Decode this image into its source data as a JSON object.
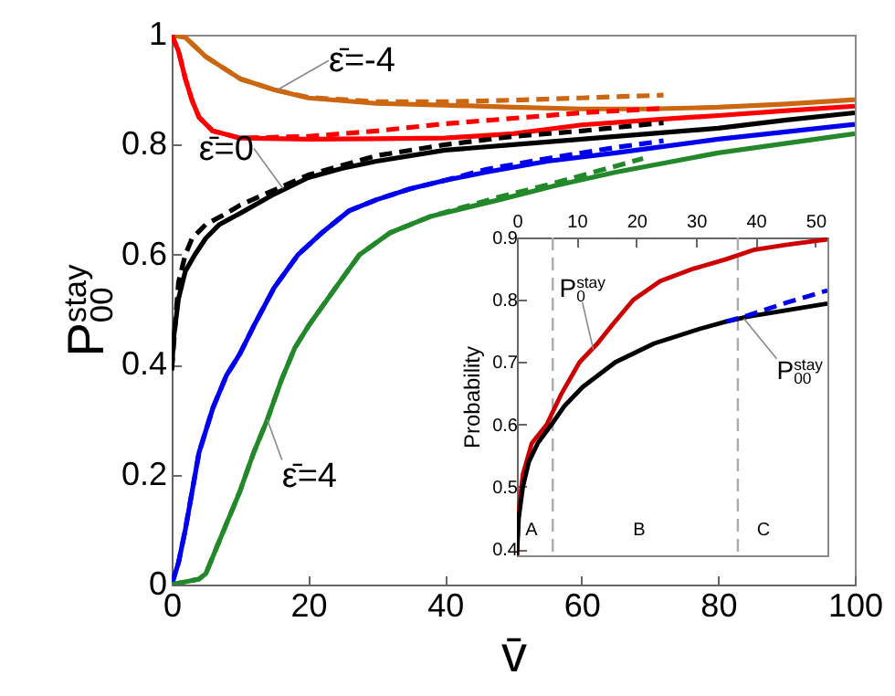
{
  "chart_data": [
    {
      "type": "line",
      "xlabel": "v̄",
      "ylabel": "P$_{00}$$^{stay}$",
      "xlim": [
        0,
        100
      ],
      "xticks": [
        0,
        20,
        40,
        60,
        80,
        100
      ],
      "ylim": [
        0,
        1
      ],
      "yticks": [
        0,
        0.2,
        0.4,
        0.6,
        0.8,
        1
      ],
      "series": [
        {
          "color": "#cc6611",
          "x": [
            0,
            2,
            5,
            10,
            15,
            20,
            30,
            40,
            50,
            60,
            70,
            80,
            90,
            100
          ],
          "values": [
            1,
            0.995,
            0.96,
            0.92,
            0.9,
            0.885,
            0.875,
            0.872,
            0.868,
            0.865,
            0.865,
            0.868,
            0.874,
            0.882
          ]
        },
        {
          "color": "#cc6611",
          "line_style": "dashed",
          "x": [
            0,
            2,
            5,
            10,
            15,
            20,
            30,
            40,
            50,
            60,
            72
          ],
          "values": [
            1,
            0.995,
            0.96,
            0.92,
            0.9,
            0.886,
            0.878,
            0.878,
            0.881,
            0.885,
            0.89
          ]
        },
        {
          "color": "#ff0000",
          "x": [
            0,
            1,
            2,
            3,
            4,
            6,
            10,
            20,
            30,
            40,
            50,
            60,
            70,
            80,
            90,
            100
          ],
          "values": [
            1,
            0.97,
            0.92,
            0.88,
            0.85,
            0.825,
            0.812,
            0.81,
            0.811,
            0.812,
            0.82,
            0.836,
            0.845,
            0.853,
            0.862,
            0.87
          ]
        },
        {
          "color": "#ff0000",
          "line_style": "dashed",
          "x": [
            0,
            1,
            2,
            3,
            4,
            6,
            10,
            20,
            30,
            40,
            50,
            60,
            72
          ],
          "values": [
            1,
            0.97,
            0.92,
            0.88,
            0.85,
            0.825,
            0.812,
            0.815,
            0.825,
            0.838,
            0.848,
            0.858,
            0.866
          ]
        },
        {
          "color": "#000000",
          "x": [
            0,
            0.3,
            1,
            2,
            3.4,
            5,
            7,
            10,
            15,
            20,
            25,
            30,
            40,
            50,
            60,
            70,
            80,
            90,
            100
          ],
          "values": [
            0.39,
            0.45,
            0.52,
            0.57,
            0.6,
            0.63,
            0.655,
            0.675,
            0.71,
            0.74,
            0.757,
            0.77,
            0.79,
            0.8,
            0.81,
            0.82,
            0.83,
            0.845,
            0.858
          ]
        },
        {
          "color": "#000000",
          "line_style": "dashed",
          "x": [
            0,
            1,
            2,
            3,
            5,
            8,
            10,
            20,
            30,
            40,
            50,
            60,
            72
          ],
          "values": [
            0.39,
            0.55,
            0.6,
            0.63,
            0.655,
            0.675,
            0.69,
            0.745,
            0.78,
            0.8,
            0.815,
            0.825,
            0.84
          ]
        },
        {
          "color": "#0000ee",
          "x": [
            0,
            1,
            2,
            3,
            4,
            6,
            8,
            10,
            12,
            15,
            18.5,
            22,
            26,
            30,
            35,
            40,
            46,
            55,
            65,
            80,
            100
          ],
          "values": [
            0,
            0.04,
            0.1,
            0.17,
            0.24,
            0.32,
            0.38,
            0.42,
            0.47,
            0.54,
            0.6,
            0.64,
            0.68,
            0.7,
            0.72,
            0.735,
            0.75,
            0.77,
            0.785,
            0.81,
            0.837
          ]
        },
        {
          "color": "#0000ee",
          "line_style": "dashed",
          "x": [
            0,
            1,
            2,
            3,
            4,
            6,
            8,
            10,
            12,
            15,
            18.5,
            22,
            26,
            30,
            35,
            40,
            46,
            55,
            65,
            72
          ],
          "values": [
            0,
            0.04,
            0.1,
            0.17,
            0.24,
            0.32,
            0.38,
            0.42,
            0.47,
            0.54,
            0.6,
            0.64,
            0.68,
            0.7,
            0.72,
            0.735,
            0.755,
            0.775,
            0.795,
            0.807
          ]
        },
        {
          "color": "#22882a",
          "x": [
            0,
            2,
            4,
            5,
            7,
            10,
            12,
            14,
            16,
            18,
            20,
            24,
            27.5,
            32,
            38,
            48,
            56,
            65,
            80,
            100
          ],
          "values": [
            0,
            0.005,
            0.01,
            0.02,
            0.08,
            0.17,
            0.24,
            0.3,
            0.37,
            0.43,
            0.47,
            0.54,
            0.6,
            0.64,
            0.67,
            0.7,
            0.725,
            0.75,
            0.785,
            0.82
          ]
        },
        {
          "color": "#22882a",
          "line_style": "dashed",
          "x": [
            0,
            2,
            4,
            5,
            7,
            10,
            12,
            14,
            16,
            18,
            20,
            24,
            27.5,
            32,
            38,
            48,
            56,
            69
          ],
          "values": [
            0,
            0.005,
            0.01,
            0.02,
            0.08,
            0.17,
            0.24,
            0.3,
            0.37,
            0.43,
            0.47,
            0.54,
            0.6,
            0.64,
            0.67,
            0.705,
            0.73,
            0.775
          ]
        }
      ],
      "annotations": [
        {
          "text": "ε̄=-4",
          "x": 15.5,
          "y": 0.9
        },
        {
          "text": "ε̄=0",
          "x": 16.3,
          "y": 0.72
        },
        {
          "text": "ε̄=4",
          "x": 14,
          "y": 0.3
        }
      ]
    },
    {
      "type": "line",
      "ylabel": "Probability",
      "xlim": [
        0,
        52
      ],
      "xticks": [
        0,
        10,
        20,
        30,
        40,
        50
      ],
      "ylim": [
        0.39,
        0.9
      ],
      "yticks": [
        0.4,
        0.5,
        0.6,
        0.7,
        0.8,
        0.9
      ],
      "series": [
        {
          "color": "#cc0000",
          "x": [
            0,
            0.3,
            1,
            2.5,
            5,
            7.5,
            10.5,
            13.5,
            16,
            19.5,
            24,
            29.6,
            35,
            39.6,
            45,
            52
          ],
          "values": [
            0.39,
            0.46,
            0.52,
            0.57,
            0.6,
            0.65,
            0.7,
            0.73,
            0.76,
            0.8,
            0.83,
            0.85,
            0.865,
            0.88,
            0.888,
            0.897
          ]
        },
        {
          "color": "#000000",
          "x": [
            0,
            0.3,
            1,
            2,
            3.5,
            5.8,
            8,
            11,
            16.5,
            23,
            30.5,
            35,
            38.7,
            45,
            52
          ],
          "values": [
            0.39,
            0.45,
            0.5,
            0.54,
            0.57,
            0.6,
            0.63,
            0.66,
            0.7,
            0.73,
            0.753,
            0.765,
            0.773,
            0.783,
            0.794
          ]
        },
        {
          "color": "#0000ee",
          "line_style": "dashed",
          "x": [
            35,
            38.7,
            45,
            52
          ],
          "values": [
            0.765,
            0.775,
            0.795,
            0.815
          ]
        }
      ],
      "ref_lines": [
        {
          "axis": "x",
          "value": 6,
          "line_style": "dashed",
          "color": "#aaaaaa"
        },
        {
          "axis": "x",
          "value": 37,
          "line_style": "dashed",
          "color": "#aaaaaa"
        }
      ],
      "annotations": [
        {
          "text": "P$_{0}$$^{stay}$",
          "x": 12.8,
          "y": 0.72
        },
        {
          "text": "P$_{00}$$^{stay}$",
          "x": 38,
          "y": 0.77
        },
        "A",
        "B",
        "C"
      ]
    }
  ]
}
